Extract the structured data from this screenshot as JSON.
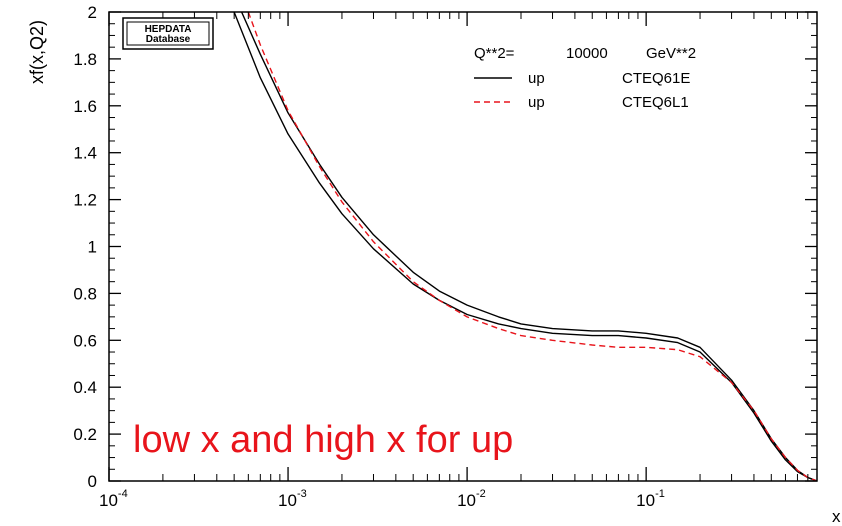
{
  "chart_data": {
    "type": "line",
    "x_scale": "log",
    "xlim": [
      0.0001,
      0.9
    ],
    "ylim": [
      0,
      2
    ],
    "xlabel": "x",
    "ylabel": "xf(x,Q2)",
    "grid": false,
    "legend_position": "top-right",
    "legend_header": {
      "q_label": "Q**2=",
      "q_value": "10000",
      "q_unit": "GeV**2"
    },
    "logo_line1": "HEPDATA",
    "logo_line2": "Database",
    "annotation": "low x and high x for up",
    "x_ticks": [
      {
        "base": "10",
        "exp": "-4",
        "value": 0.0001
      },
      {
        "base": "10",
        "exp": "-3",
        "value": 0.001
      },
      {
        "base": "10",
        "exp": "-2",
        "value": 0.01
      },
      {
        "base": "10",
        "exp": "-1",
        "value": 0.1
      }
    ],
    "y_ticks": [
      {
        "label": "0",
        "value": 0
      },
      {
        "label": "0.2",
        "value": 0.2
      },
      {
        "label": "0.4",
        "value": 0.4
      },
      {
        "label": "0.6",
        "value": 0.6
      },
      {
        "label": "0.8",
        "value": 0.8
      },
      {
        "label": "1",
        "value": 1.0
      },
      {
        "label": "1.2",
        "value": 1.2
      },
      {
        "label": "1.4",
        "value": 1.4
      },
      {
        "label": "1.6",
        "value": 1.6
      },
      {
        "label": "1.8",
        "value": 1.8
      },
      {
        "label": "2",
        "value": 2.0
      }
    ],
    "series": [
      {
        "name": "CTEQ61E",
        "legend_flavor": "up",
        "color": "#000000",
        "dash": "solid",
        "x": [
          0.0005,
          0.0007,
          0.001,
          0.0015,
          0.002,
          0.003,
          0.005,
          0.007,
          0.01,
          0.015,
          0.02,
          0.03,
          0.05,
          0.07,
          0.1,
          0.15,
          0.2,
          0.3,
          0.4,
          0.5,
          0.6,
          0.7,
          0.8,
          0.9
        ],
        "y": [
          2.0,
          1.72,
          1.48,
          1.27,
          1.14,
          0.99,
          0.84,
          0.77,
          0.71,
          0.67,
          0.65,
          0.63,
          0.62,
          0.62,
          0.61,
          0.59,
          0.55,
          0.42,
          0.29,
          0.17,
          0.09,
          0.04,
          0.015,
          0.0
        ]
      },
      {
        "name": "CTEQ61E",
        "legend_flavor": "",
        "color": "#000000",
        "dash": "solid",
        "x": [
          0.00055,
          0.0007,
          0.001,
          0.0015,
          0.002,
          0.003,
          0.005,
          0.007,
          0.01,
          0.015,
          0.02,
          0.03,
          0.05,
          0.07,
          0.1,
          0.15,
          0.2,
          0.3,
          0.4,
          0.5,
          0.6,
          0.7,
          0.8,
          0.9
        ],
        "y": [
          2.0,
          1.82,
          1.57,
          1.35,
          1.21,
          1.05,
          0.89,
          0.81,
          0.75,
          0.7,
          0.67,
          0.65,
          0.64,
          0.64,
          0.63,
          0.61,
          0.57,
          0.43,
          0.3,
          0.18,
          0.1,
          0.045,
          0.015,
          0.0
        ]
      },
      {
        "name": "CTEQ6L1",
        "legend_flavor": "up",
        "color": "#e8141b",
        "dash": "dashed",
        "x": [
          0.0006,
          0.0007,
          0.001,
          0.0015,
          0.002,
          0.003,
          0.005,
          0.007,
          0.01,
          0.015,
          0.02,
          0.03,
          0.05,
          0.07,
          0.1,
          0.15,
          0.2,
          0.3,
          0.4,
          0.5,
          0.6,
          0.7,
          0.8,
          0.9
        ],
        "y": [
          2.0,
          1.86,
          1.58,
          1.34,
          1.19,
          1.02,
          0.85,
          0.77,
          0.7,
          0.65,
          0.62,
          0.6,
          0.58,
          0.57,
          0.57,
          0.56,
          0.53,
          0.42,
          0.3,
          0.18,
          0.1,
          0.045,
          0.015,
          0.0
        ]
      }
    ]
  }
}
